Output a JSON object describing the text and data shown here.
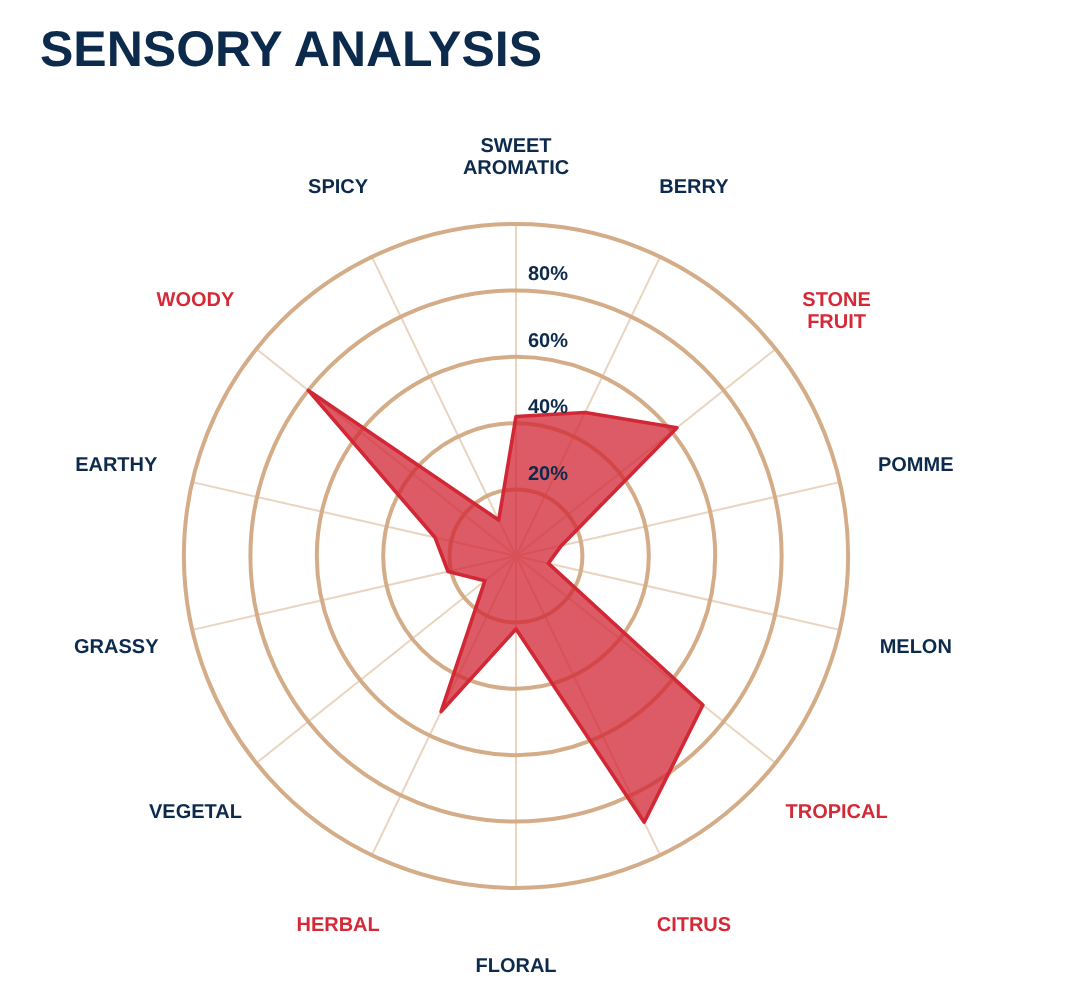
{
  "chart_data": {
    "type": "radar",
    "title": "SENSORY ANALYSIS",
    "categories": [
      "SWEET AROMATIC",
      "BERRY",
      "STONE FRUIT",
      "POMME",
      "MELON",
      "TROPICAL",
      "CITRUS",
      "FLORAL",
      "HERBAL",
      "VEGETAL",
      "GRASSY",
      "EARTHY",
      "WOODY",
      "SPICY"
    ],
    "colors": [
      "#0c2a4b",
      "#0c2a4b",
      "#d42a38",
      "#0c2a4b",
      "#0c2a4b",
      "#d42a38",
      "#d42a38",
      "#0c2a4b",
      "#d42a38",
      "#0c2a4b",
      "#0c2a4b",
      "#0c2a4b",
      "#d42a38",
      "#0c2a4b"
    ],
    "series": [
      {
        "color": "#d22836",
        "values": [
          42,
          48,
          62,
          14,
          10,
          72,
          89,
          22,
          52,
          12,
          21,
          25,
          80,
          12
        ]
      }
    ],
    "ylim": [
      0,
      100
    ],
    "yticks": [
      {
        "value": 20,
        "label": "20%"
      },
      {
        "value": 40,
        "label": "40%"
      },
      {
        "value": 60,
        "label": "60%"
      },
      {
        "value": 80,
        "label": "80%"
      }
    ],
    "grid": true
  }
}
